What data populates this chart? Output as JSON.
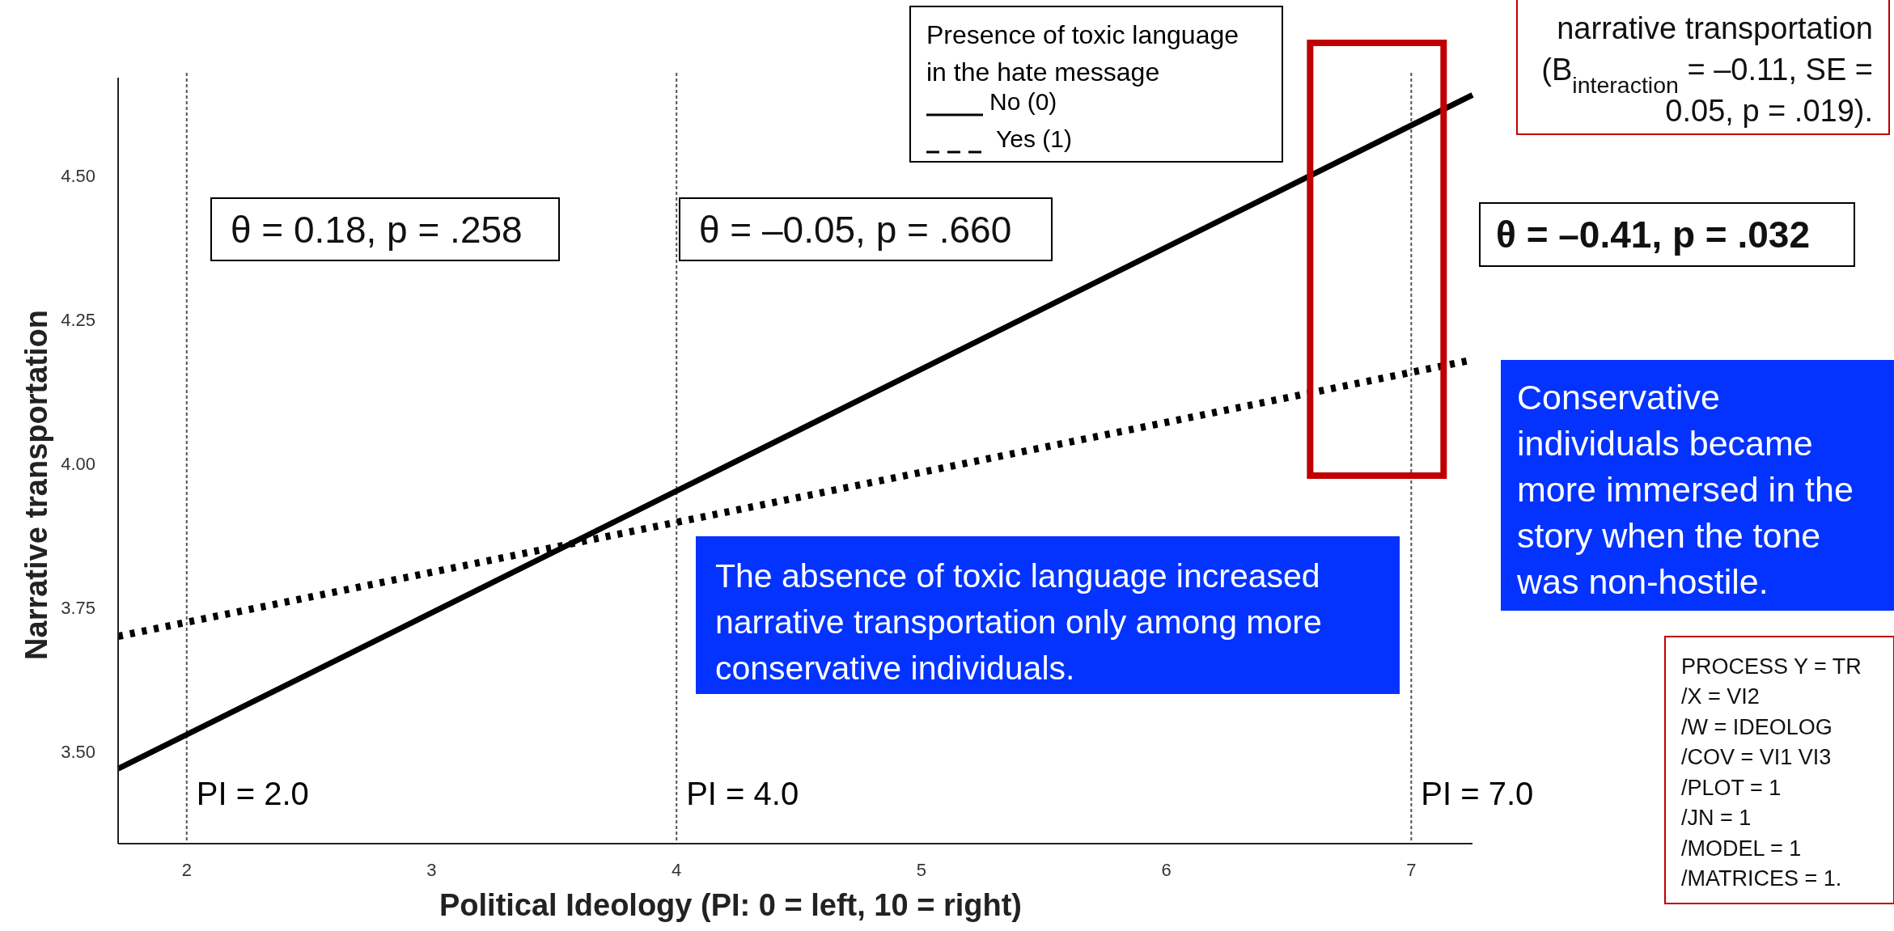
{
  "chart_data": {
    "type": "line",
    "xlabel": "Political Ideology (PI: 0 = left, 10 = right)",
    "ylabel": "Narrative transportation",
    "legend_title": "Presence of toxic language in the hate message",
    "legend": "top",
    "x": [
      1.72,
      7.25
    ],
    "xlim": [
      1.72,
      7.25
    ],
    "xticks": [
      2,
      3,
      4,
      5,
      6,
      7
    ],
    "ylim": [
      3.34,
      4.67
    ],
    "yticks": [
      {
        "value": 3.5,
        "label": "3.50"
      },
      {
        "value": 3.75,
        "label": "3.75"
      },
      {
        "value": 4,
        "label": "4.00"
      },
      {
        "value": 4.25,
        "label": "4.25"
      },
      {
        "value": 4.5,
        "label": "4.50"
      }
    ],
    "grid": false,
    "series": [
      {
        "name": "No (0)",
        "color": "#000000",
        "values": [
          3.47,
          4.64
        ],
        "line_style": "solid"
      },
      {
        "name": "Yes (1)",
        "color": "#000000",
        "values": [
          3.7,
          4.18
        ],
        "line_style": "dotted"
      }
    ],
    "ref_lines": [
      {
        "axis": "x",
        "value": 2,
        "label": "PI = 2.0",
        "color": "#555555",
        "line_style": "dashed"
      },
      {
        "axis": "x",
        "value": 4,
        "label": "PI = 4.0",
        "color": "#555555",
        "line_style": "dashed"
      },
      {
        "axis": "x",
        "value": 7,
        "label": "PI = 7.0",
        "color": "#555555",
        "line_style": "dashed"
      }
    ],
    "annotations": [
      "θ = 0.18, p = .258",
      "θ = –0.05, p = .660",
      "θ = –0.41, p = .032",
      "narrative transportation\n(B$_{interaction}$ = –0.11, SE =\n0.05, p = .019).",
      "The absence of toxic language increased\nnarrative transportation only among more\nconservative individuals.",
      "Conservative\nindividuals became\nmore immersed in the\nstory when the tone\nwas non-hostile.",
      "PROCESS Y = TR\n/X = VI2\n/W = IDEOLOG\n/COV = VI1 VI3\n/PLOT = 1\n/JN = 1\n/MODEL = 1\n/MATRICES = 1."
    ]
  }
}
